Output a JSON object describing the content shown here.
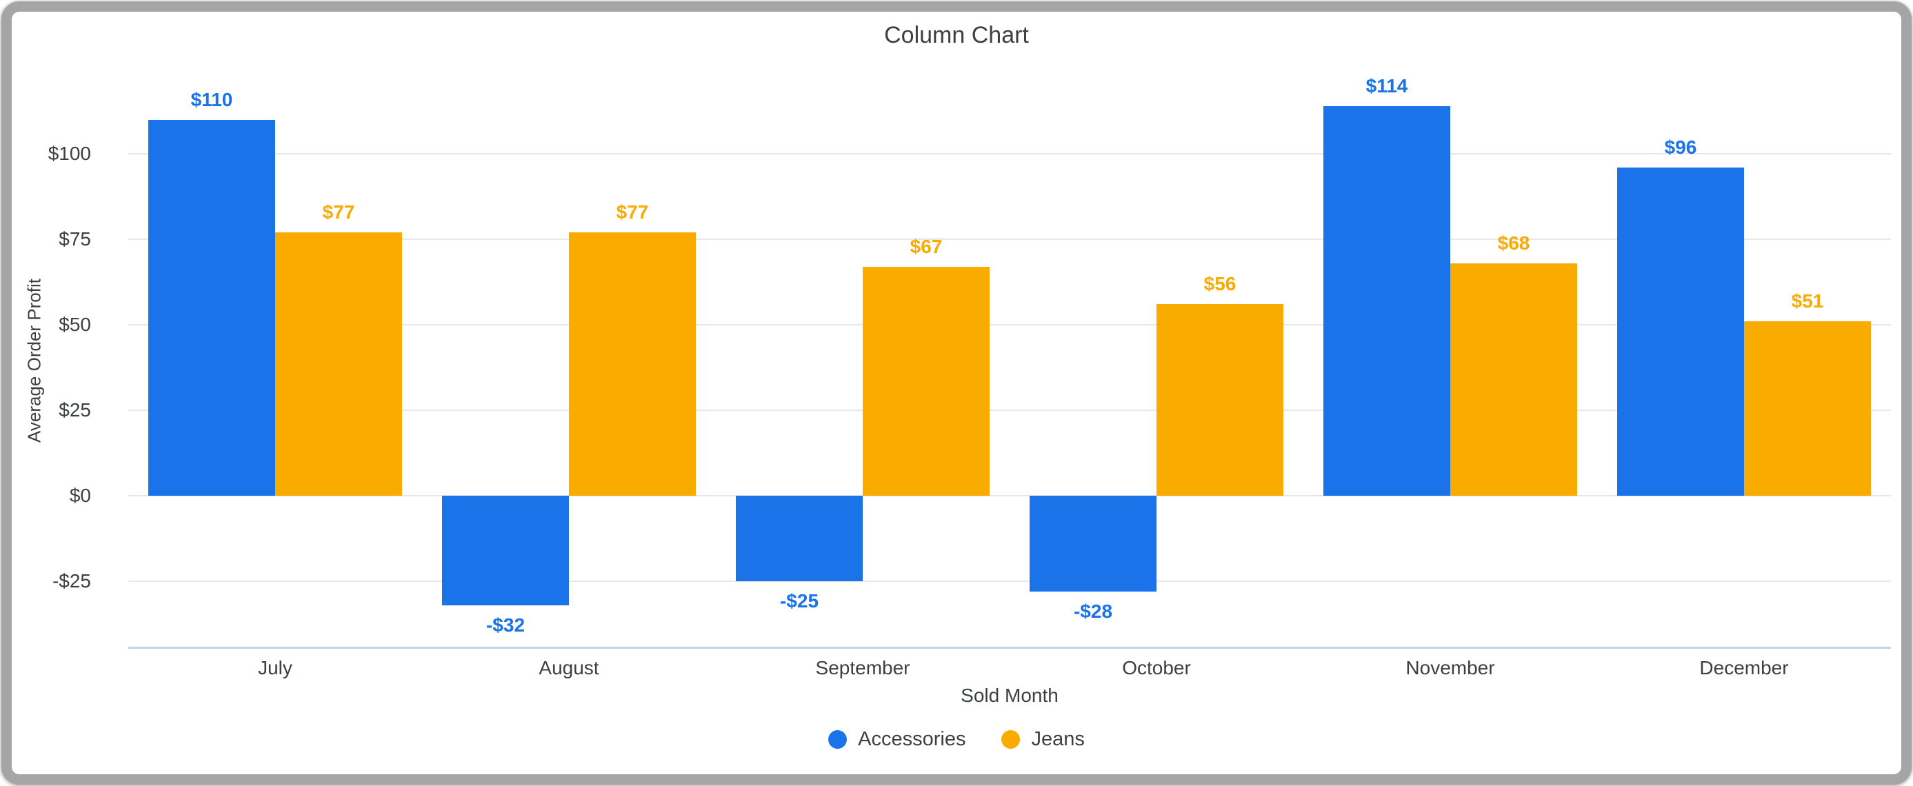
{
  "frame": {
    "border_color": "#a5a5a8",
    "background": "#ffffff"
  },
  "styles": {
    "grid_color": "#e7e7e7",
    "axis_line_color": "#c7d3eb",
    "text_color": "#3c4043"
  },
  "chart_data": {
    "type": "bar",
    "title": "Column Chart",
    "xlabel": "Sold Month",
    "ylabel": "Average Order Profit",
    "categories": [
      "July",
      "August",
      "September",
      "October",
      "November",
      "December"
    ],
    "series": [
      {
        "name": "Accessories",
        "color": "#1a73e8",
        "values": [
          110,
          -32,
          -25,
          -28,
          114,
          96
        ],
        "labels": [
          "$110",
          "-$32",
          "-$25",
          "-$28",
          "$114",
          "$96"
        ]
      },
      {
        "name": "Jeans",
        "color": "#f9ab00",
        "values": [
          77,
          77,
          67,
          56,
          68,
          51
        ],
        "labels": [
          "$77",
          "$77",
          "$67",
          "$56",
          "$68",
          "$51"
        ]
      }
    ],
    "y_ticks": [
      {
        "value": 100,
        "label": "$100"
      },
      {
        "value": 75,
        "label": "$75"
      },
      {
        "value": 50,
        "label": "$50"
      },
      {
        "value": 25,
        "label": "$25"
      },
      {
        "value": 0,
        "label": "$0"
      },
      {
        "value": -25,
        "label": "-$25"
      }
    ],
    "ylim": [
      -44.5,
      121
    ],
    "grid": true,
    "legend_position": "bottom",
    "legend": [
      "Accessories",
      "Jeans"
    ]
  }
}
